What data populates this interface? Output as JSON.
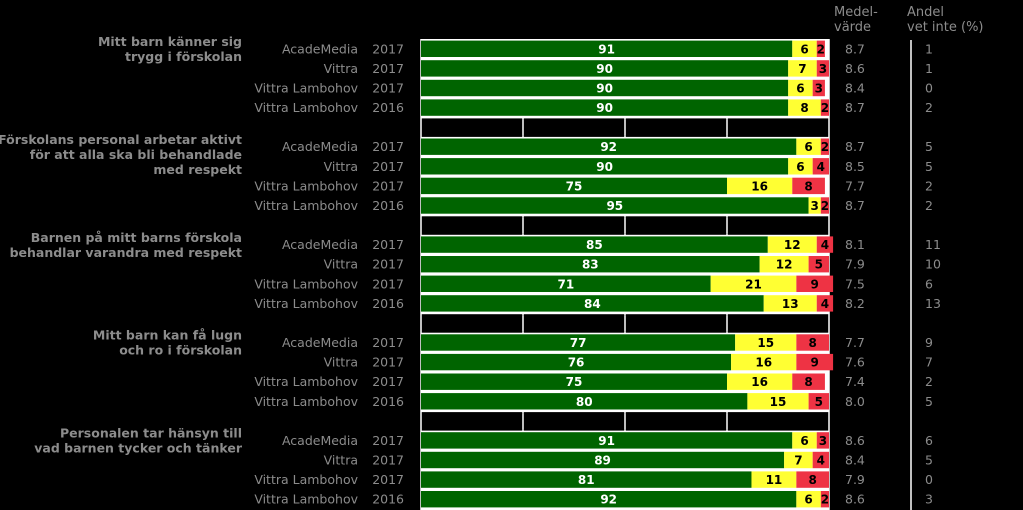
{
  "header": {
    "mean_label_line1": "Medel-",
    "mean_label_line2": "värde",
    "dontknow_label_line1": "Andel",
    "dontknow_label_line2": "vet inte (%)"
  },
  "colors": {
    "positive": "#006400",
    "neutral": "#ffff33",
    "negative": "#ee3344",
    "label_text": "#8c8c8c",
    "background": "#000000"
  },
  "chart_data": {
    "type": "bar",
    "stacked": true,
    "orientation": "horizontal",
    "series": [
      {
        "name": "positive",
        "color": "#006400"
      },
      {
        "name": "neutral",
        "color": "#ffff33"
      },
      {
        "name": "negative",
        "color": "#ee3344"
      }
    ],
    "xlim": [
      0,
      100
    ],
    "grid": true,
    "groups": [
      {
        "question": [
          "Mitt barn känner sig",
          "trygg i förskolan"
        ],
        "rows": [
          {
            "unit": "AcadeMedia",
            "year": "2017",
            "values": [
              91,
              6,
              2
            ],
            "mean": "8.7",
            "dont_know": "1"
          },
          {
            "unit": "Vittra",
            "year": "2017",
            "values": [
              90,
              7,
              3
            ],
            "mean": "8.6",
            "dont_know": "1"
          },
          {
            "unit": "Vittra Lambohov",
            "year": "2017",
            "values": [
              90,
              6,
              3
            ],
            "mean": "8.4",
            "dont_know": "0"
          },
          {
            "unit": "Vittra Lambohov",
            "year": "2016",
            "values": [
              90,
              8,
              2
            ],
            "mean": "8.7",
            "dont_know": "2"
          }
        ]
      },
      {
        "question": [
          "Förskolans personal arbetar aktivt",
          "för att alla ska bli behandlade",
          "med respekt"
        ],
        "rows": [
          {
            "unit": "AcadeMedia",
            "year": "2017",
            "values": [
              92,
              6,
              2
            ],
            "mean": "8.7",
            "dont_know": "5"
          },
          {
            "unit": "Vittra",
            "year": "2017",
            "values": [
              90,
              6,
              4
            ],
            "mean": "8.5",
            "dont_know": "5"
          },
          {
            "unit": "Vittra Lambohov",
            "year": "2017",
            "values": [
              75,
              16,
              8
            ],
            "mean": "7.7",
            "dont_know": "2"
          },
          {
            "unit": "Vittra Lambohov",
            "year": "2016",
            "values": [
              95,
              3,
              2
            ],
            "mean": "8.7",
            "dont_know": "2"
          }
        ]
      },
      {
        "question": [
          "Barnen på mitt barns förskola",
          "behandlar varandra med respekt"
        ],
        "rows": [
          {
            "unit": "AcadeMedia",
            "year": "2017",
            "values": [
              85,
              12,
              4
            ],
            "mean": "8.1",
            "dont_know": "11"
          },
          {
            "unit": "Vittra",
            "year": "2017",
            "values": [
              83,
              12,
              5
            ],
            "mean": "7.9",
            "dont_know": "10"
          },
          {
            "unit": "Vittra Lambohov",
            "year": "2017",
            "values": [
              71,
              21,
              9
            ],
            "mean": "7.5",
            "dont_know": "6"
          },
          {
            "unit": "Vittra Lambohov",
            "year": "2016",
            "values": [
              84,
              13,
              4
            ],
            "mean": "8.2",
            "dont_know": "13"
          }
        ]
      },
      {
        "question": [
          "Mitt barn kan få lugn",
          "och ro i förskolan"
        ],
        "rows": [
          {
            "unit": "AcadeMedia",
            "year": "2017",
            "values": [
              77,
              15,
              8
            ],
            "mean": "7.7",
            "dont_know": "9"
          },
          {
            "unit": "Vittra",
            "year": "2017",
            "values": [
              76,
              16,
              9
            ],
            "mean": "7.6",
            "dont_know": "7"
          },
          {
            "unit": "Vittra Lambohov",
            "year": "2017",
            "values": [
              75,
              16,
              8
            ],
            "mean": "7.4",
            "dont_know": "2"
          },
          {
            "unit": "Vittra Lambohov",
            "year": "2016",
            "values": [
              80,
              15,
              5
            ],
            "mean": "8.0",
            "dont_know": "5"
          }
        ]
      },
      {
        "question": [
          "Personalen tar hänsyn till",
          "vad barnen tycker och tänker"
        ],
        "rows": [
          {
            "unit": "AcadeMedia",
            "year": "2017",
            "values": [
              91,
              6,
              3
            ],
            "mean": "8.6",
            "dont_know": "6"
          },
          {
            "unit": "Vittra",
            "year": "2017",
            "values": [
              89,
              7,
              4
            ],
            "mean": "8.4",
            "dont_know": "5"
          },
          {
            "unit": "Vittra Lambohov",
            "year": "2017",
            "values": [
              81,
              11,
              8
            ],
            "mean": "7.9",
            "dont_know": "0"
          },
          {
            "unit": "Vittra Lambohov",
            "year": "2016",
            "values": [
              92,
              6,
              2
            ],
            "mean": "8.6",
            "dont_know": "3"
          }
        ]
      }
    ]
  }
}
